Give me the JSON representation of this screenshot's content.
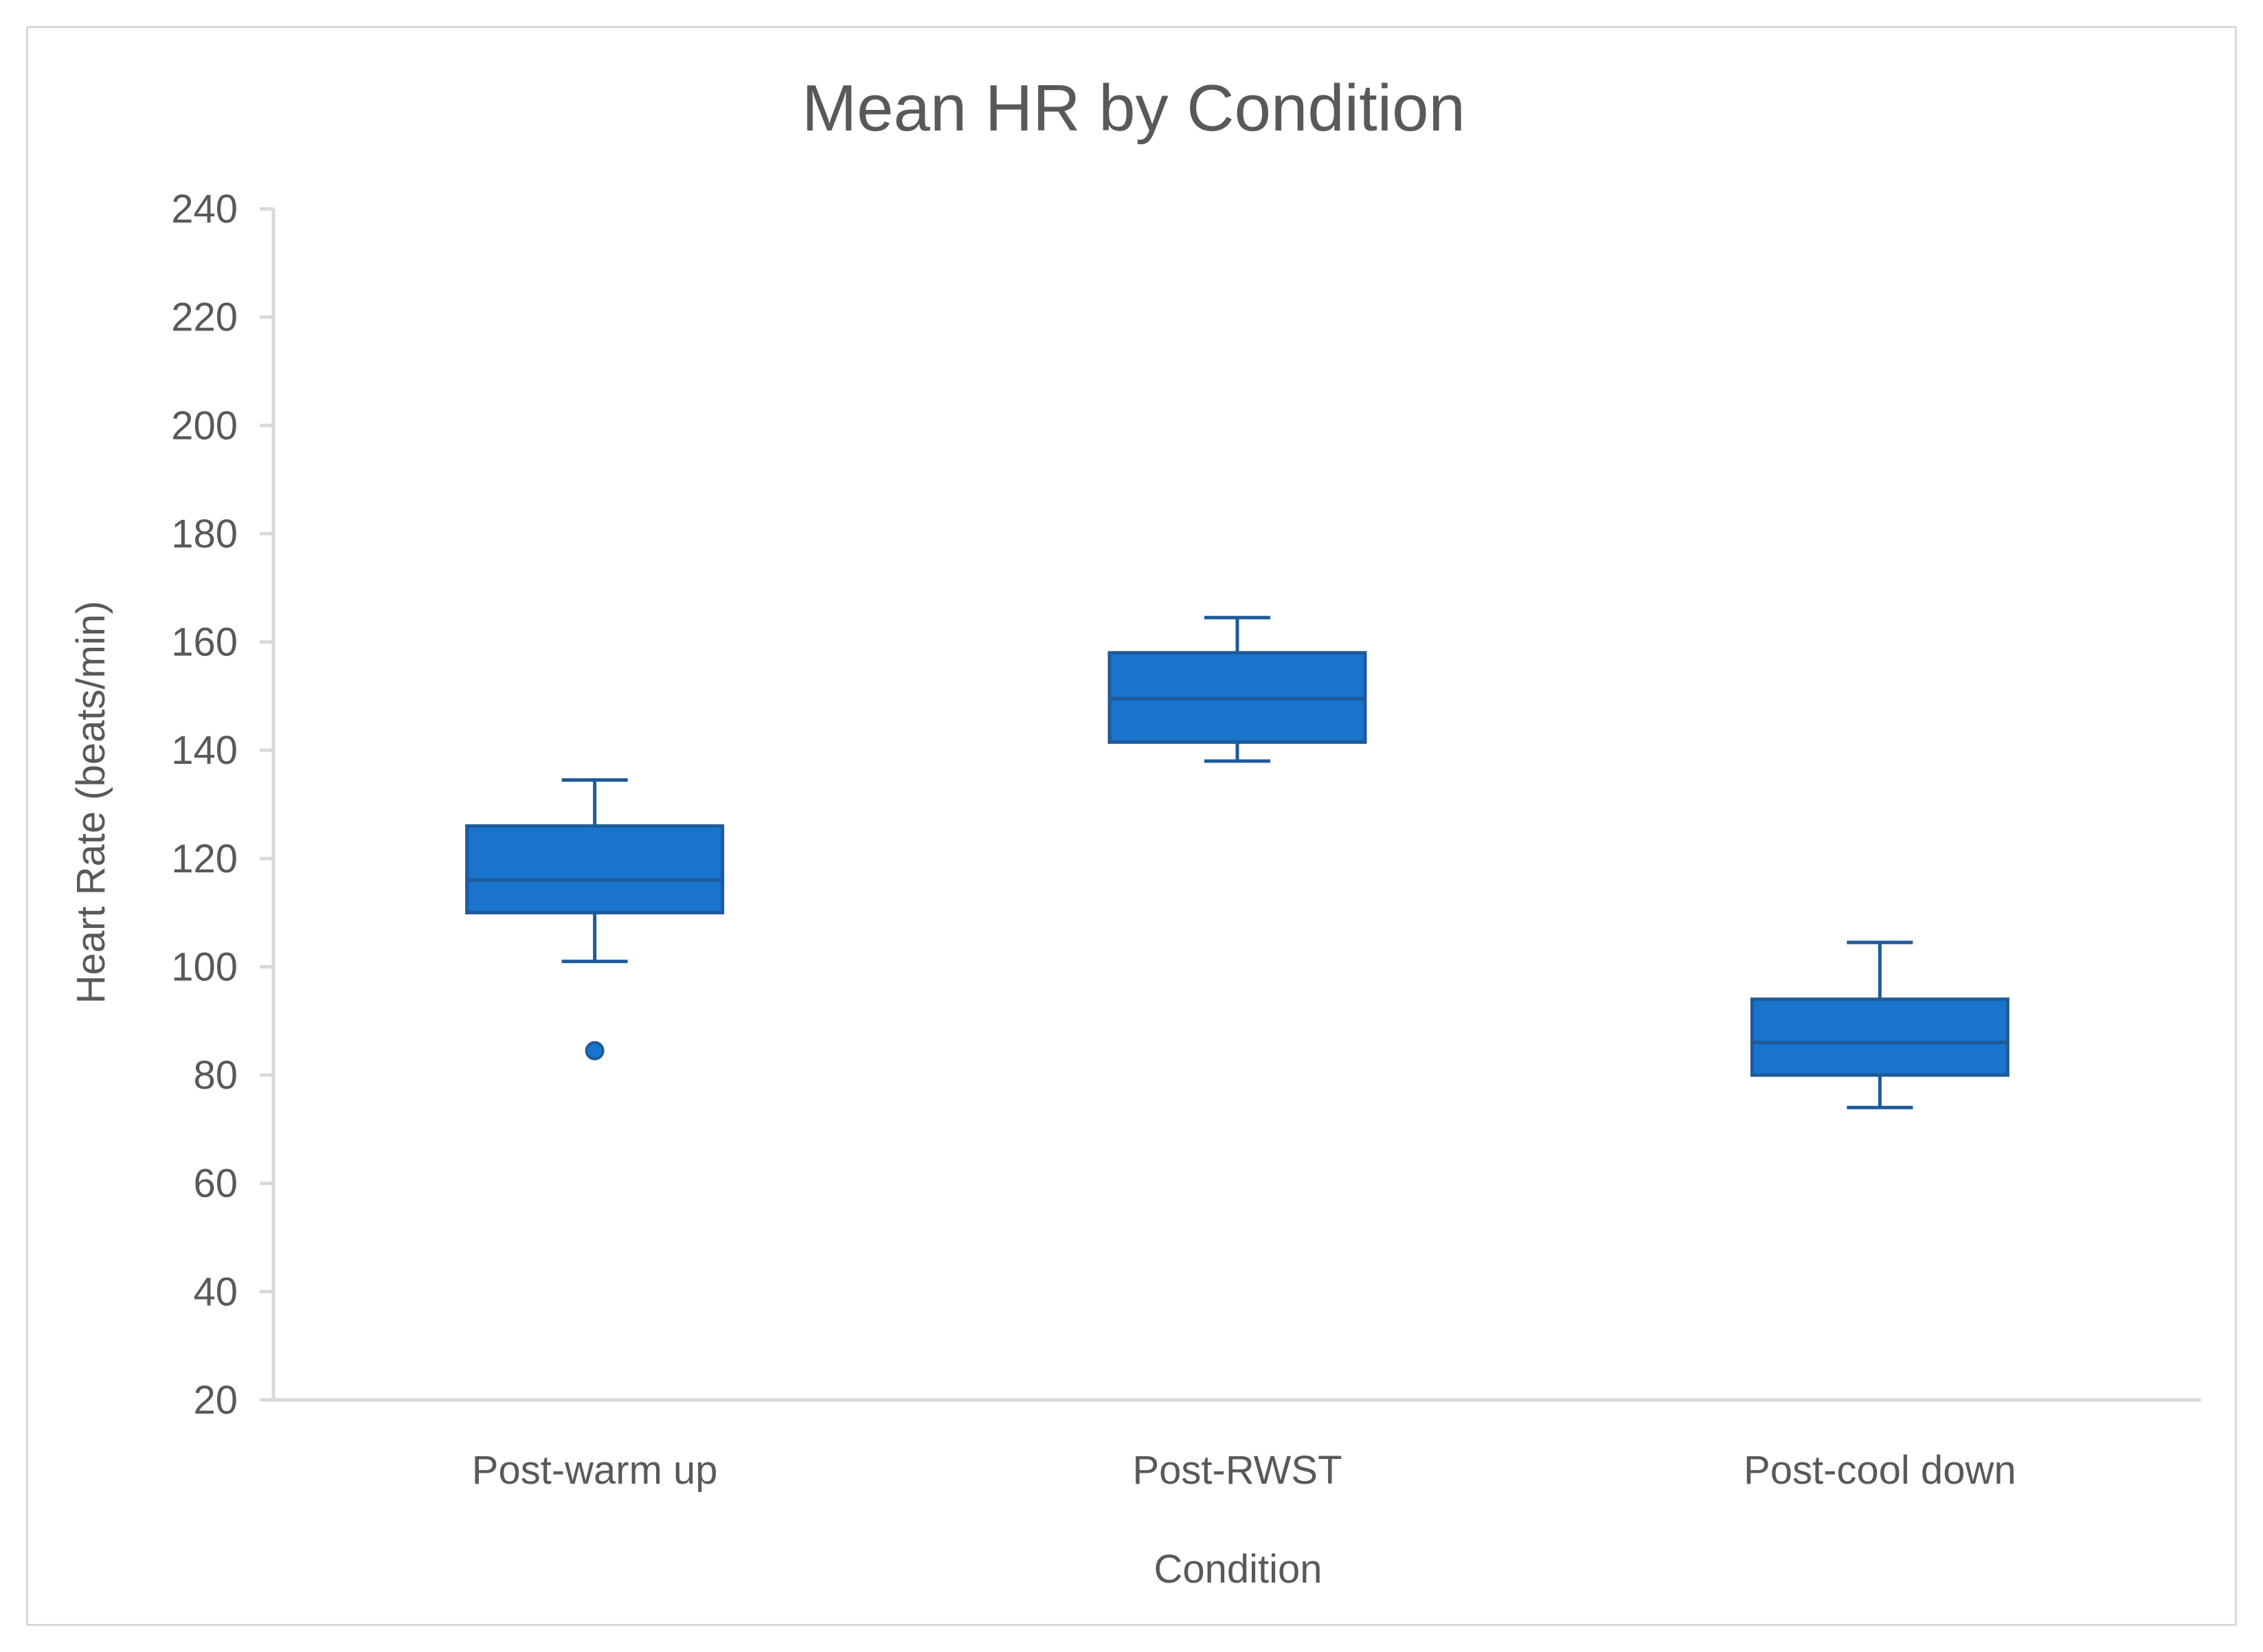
{
  "chart_data": {
    "type": "boxplot",
    "title": "Mean HR by Condition",
    "xlabel": "Condition",
    "ylabel": "Heart Rate (beats/min)",
    "ylim": [
      20,
      240
    ],
    "yticks": [
      20,
      40,
      60,
      80,
      100,
      120,
      140,
      160,
      180,
      200,
      220,
      240
    ],
    "categories": [
      "Post-warm up",
      "Post-RWST",
      "Post-cool down"
    ],
    "boxes": [
      {
        "category": "Post-warm up",
        "min": 101,
        "q1": 110,
        "median": 116,
        "q3": 126,
        "max": 134.5,
        "outliers": [
          84.5
        ]
      },
      {
        "category": "Post-RWST",
        "min": 138,
        "q1": 141.5,
        "median": 149.5,
        "q3": 158,
        "max": 164.5,
        "outliers": []
      },
      {
        "category": "Post-cool down",
        "min": 74,
        "q1": 80,
        "median": 86,
        "q3": 94,
        "max": 104.5,
        "outliers": []
      }
    ],
    "colors": {
      "box_fill": "#1874CD",
      "box_stroke": "#1F5A99",
      "axis": "#d9d9d9",
      "text": "#595959"
    },
    "grid": false,
    "legend": "none"
  }
}
